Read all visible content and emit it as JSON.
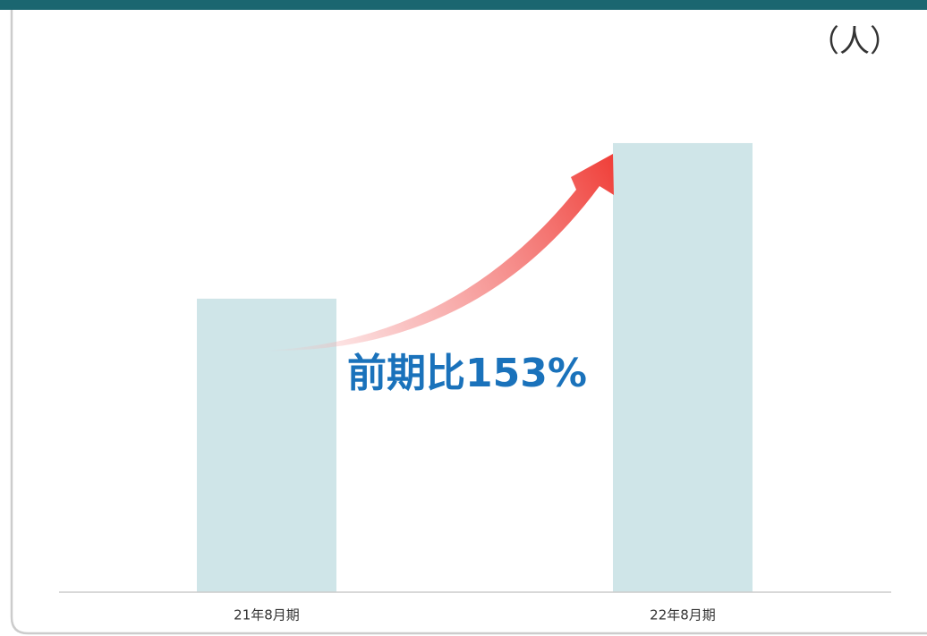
{
  "chart_data": {
    "type": "bar",
    "unit_label": "（人）",
    "annotation": "前期比153%",
    "categories": [
      "21年8月期",
      "22年8月期"
    ],
    "values": [
      100,
      153
    ],
    "color": "#cfe5e8",
    "ylim": [
      0,
      160
    ]
  }
}
